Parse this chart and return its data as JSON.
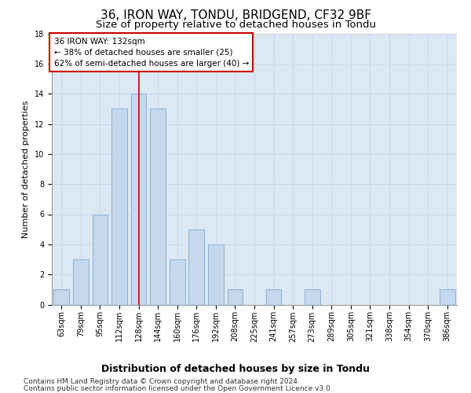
{
  "title": "36, IRON WAY, TONDU, BRIDGEND, CF32 9BF",
  "subtitle": "Size of property relative to detached houses in Tondu",
  "xlabel": "Distribution of detached houses by size in Tondu",
  "ylabel": "Number of detached properties",
  "categories": [
    "63sqm",
    "79sqm",
    "95sqm",
    "112sqm",
    "128sqm",
    "144sqm",
    "160sqm",
    "176sqm",
    "192sqm",
    "208sqm",
    "225sqm",
    "241sqm",
    "257sqm",
    "273sqm",
    "289sqm",
    "305sqm",
    "321sqm",
    "338sqm",
    "354sqm",
    "370sqm",
    "386sqm"
  ],
  "values": [
    1,
    3,
    6,
    13,
    14,
    13,
    3,
    5,
    4,
    1,
    0,
    1,
    0,
    1,
    0,
    0,
    0,
    0,
    0,
    0,
    1
  ],
  "bar_color": "#c5d8ed",
  "bar_edge_color": "#8ab0d4",
  "vline_x": 4,
  "vline_color": "#cc0000",
  "annotation_text": "36 IRON WAY: 132sqm\n← 38% of detached houses are smaller (25)\n62% of semi-detached houses are larger (40) →",
  "annotation_box_color": "#ffffff",
  "annotation_box_edge": "#cc0000",
  "ylim": [
    0,
    18
  ],
  "yticks": [
    0,
    2,
    4,
    6,
    8,
    10,
    12,
    14,
    16,
    18
  ],
  "grid_color": "#c8d8e8",
  "background_color": "#dce9f5",
  "footer_line1": "Contains HM Land Registry data © Crown copyright and database right 2024.",
  "footer_line2": "Contains public sector information licensed under the Open Government Licence v3.0.",
  "title_fontsize": 11,
  "subtitle_fontsize": 9.5,
  "xlabel_fontsize": 9,
  "ylabel_fontsize": 8,
  "tick_fontsize": 7,
  "annotation_fontsize": 7.5,
  "footer_fontsize": 6.5
}
